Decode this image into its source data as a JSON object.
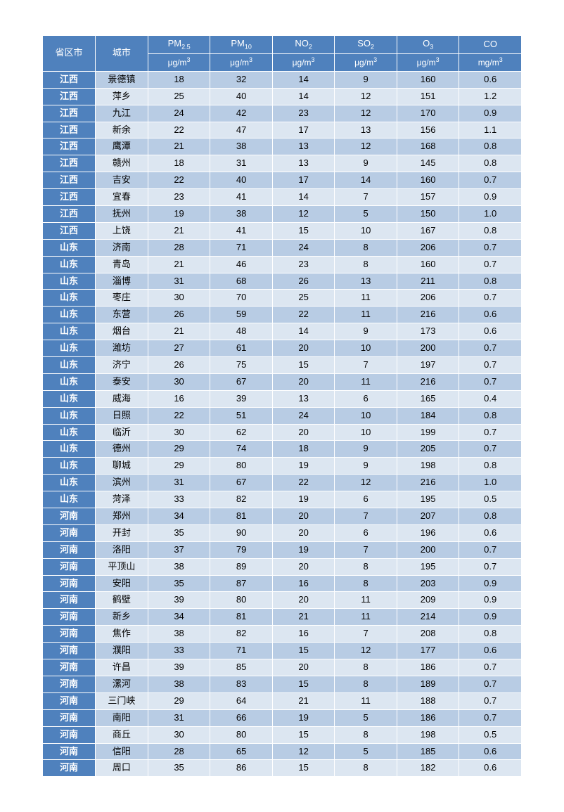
{
  "table": {
    "header": {
      "province": "省区市",
      "city": "城市",
      "pollutants": [
        {
          "name_html": "PM<sub>2.5</sub>",
          "unit_html": "μg/m<sup>3</sup>"
        },
        {
          "name_html": "PM<sub>10</sub>",
          "unit_html": "μg/m<sup>3</sup>"
        },
        {
          "name_html": "NO<sub>2</sub>",
          "unit_html": "μg/m<sup>3</sup>"
        },
        {
          "name_html": "SO<sub>2</sub>",
          "unit_html": "μg/m<sup>3</sup>"
        },
        {
          "name_html": "O<sub>3</sub>",
          "unit_html": "μg/m<sup>3</sup>"
        },
        {
          "name_html": "CO",
          "unit_html": "mg/m<sup>3</sup>"
        }
      ]
    },
    "colors": {
      "header_bg": "#4f81bd",
      "header_fg": "#ffffff",
      "province_bg": "#4f81bd",
      "province_fg": "#ffffff",
      "row_odd_bg": "#b8cce4",
      "row_even_bg": "#dce6f1",
      "cell_fg": "#000000",
      "border": "#ffffff"
    },
    "rows": [
      {
        "province": "江西",
        "city": "景德镇",
        "v": [
          "18",
          "32",
          "14",
          "9",
          "160",
          "0.6"
        ]
      },
      {
        "province": "江西",
        "city": "萍乡",
        "v": [
          "25",
          "40",
          "14",
          "12",
          "151",
          "1.2"
        ]
      },
      {
        "province": "江西",
        "city": "九江",
        "v": [
          "24",
          "42",
          "23",
          "12",
          "170",
          "0.9"
        ]
      },
      {
        "province": "江西",
        "city": "新余",
        "v": [
          "22",
          "47",
          "17",
          "13",
          "156",
          "1.1"
        ]
      },
      {
        "province": "江西",
        "city": "鹰潭",
        "v": [
          "21",
          "38",
          "13",
          "12",
          "168",
          "0.8"
        ]
      },
      {
        "province": "江西",
        "city": "赣州",
        "v": [
          "18",
          "31",
          "13",
          "9",
          "145",
          "0.8"
        ]
      },
      {
        "province": "江西",
        "city": "吉安",
        "v": [
          "22",
          "40",
          "17",
          "14",
          "160",
          "0.7"
        ]
      },
      {
        "province": "江西",
        "city": "宜春",
        "v": [
          "23",
          "41",
          "14",
          "7",
          "157",
          "0.9"
        ]
      },
      {
        "province": "江西",
        "city": "抚州",
        "v": [
          "19",
          "38",
          "12",
          "5",
          "150",
          "1.0"
        ]
      },
      {
        "province": "江西",
        "city": "上饶",
        "v": [
          "21",
          "41",
          "15",
          "10",
          "167",
          "0.8"
        ]
      },
      {
        "province": "山东",
        "city": "济南",
        "v": [
          "28",
          "71",
          "24",
          "8",
          "206",
          "0.7"
        ]
      },
      {
        "province": "山东",
        "city": "青岛",
        "v": [
          "21",
          "46",
          "23",
          "8",
          "160",
          "0.7"
        ]
      },
      {
        "province": "山东",
        "city": "淄博",
        "v": [
          "31",
          "68",
          "26",
          "13",
          "211",
          "0.8"
        ]
      },
      {
        "province": "山东",
        "city": "枣庄",
        "v": [
          "30",
          "70",
          "25",
          "11",
          "206",
          "0.7"
        ]
      },
      {
        "province": "山东",
        "city": "东营",
        "v": [
          "26",
          "59",
          "22",
          "11",
          "216",
          "0.6"
        ]
      },
      {
        "province": "山东",
        "city": "烟台",
        "v": [
          "21",
          "48",
          "14",
          "9",
          "173",
          "0.6"
        ]
      },
      {
        "province": "山东",
        "city": "潍坊",
        "v": [
          "27",
          "61",
          "20",
          "10",
          "200",
          "0.7"
        ]
      },
      {
        "province": "山东",
        "city": "济宁",
        "v": [
          "26",
          "75",
          "15",
          "7",
          "197",
          "0.7"
        ]
      },
      {
        "province": "山东",
        "city": "泰安",
        "v": [
          "30",
          "67",
          "20",
          "11",
          "216",
          "0.7"
        ]
      },
      {
        "province": "山东",
        "city": "威海",
        "v": [
          "16",
          "39",
          "13",
          "6",
          "165",
          "0.4"
        ]
      },
      {
        "province": "山东",
        "city": "日照",
        "v": [
          "22",
          "51",
          "24",
          "10",
          "184",
          "0.8"
        ]
      },
      {
        "province": "山东",
        "city": "临沂",
        "v": [
          "30",
          "62",
          "20",
          "10",
          "199",
          "0.7"
        ]
      },
      {
        "province": "山东",
        "city": "德州",
        "v": [
          "29",
          "74",
          "18",
          "9",
          "205",
          "0.7"
        ]
      },
      {
        "province": "山东",
        "city": "聊城",
        "v": [
          "29",
          "80",
          "19",
          "9",
          "198",
          "0.8"
        ]
      },
      {
        "province": "山东",
        "city": "滨州",
        "v": [
          "31",
          "67",
          "22",
          "12",
          "216",
          "1.0"
        ]
      },
      {
        "province": "山东",
        "city": "菏泽",
        "v": [
          "33",
          "82",
          "19",
          "6",
          "195",
          "0.5"
        ]
      },
      {
        "province": "河南",
        "city": "郑州",
        "v": [
          "34",
          "81",
          "20",
          "7",
          "207",
          "0.8"
        ]
      },
      {
        "province": "河南",
        "city": "开封",
        "v": [
          "35",
          "90",
          "20",
          "6",
          "196",
          "0.6"
        ]
      },
      {
        "province": "河南",
        "city": "洛阳",
        "v": [
          "37",
          "79",
          "19",
          "7",
          "200",
          "0.7"
        ]
      },
      {
        "province": "河南",
        "city": "平顶山",
        "v": [
          "38",
          "89",
          "20",
          "8",
          "195",
          "0.7"
        ]
      },
      {
        "province": "河南",
        "city": "安阳",
        "v": [
          "35",
          "87",
          "16",
          "8",
          "203",
          "0.9"
        ]
      },
      {
        "province": "河南",
        "city": "鹤壁",
        "v": [
          "39",
          "80",
          "20",
          "11",
          "209",
          "0.9"
        ]
      },
      {
        "province": "河南",
        "city": "新乡",
        "v": [
          "34",
          "81",
          "21",
          "11",
          "214",
          "0.9"
        ]
      },
      {
        "province": "河南",
        "city": "焦作",
        "v": [
          "38",
          "82",
          "16",
          "7",
          "208",
          "0.8"
        ]
      },
      {
        "province": "河南",
        "city": "濮阳",
        "v": [
          "33",
          "71",
          "15",
          "12",
          "177",
          "0.6"
        ]
      },
      {
        "province": "河南",
        "city": "许昌",
        "v": [
          "39",
          "85",
          "20",
          "8",
          "186",
          "0.7"
        ]
      },
      {
        "province": "河南",
        "city": "漯河",
        "v": [
          "38",
          "83",
          "15",
          "8",
          "189",
          "0.7"
        ]
      },
      {
        "province": "河南",
        "city": "三门峡",
        "v": [
          "29",
          "64",
          "21",
          "11",
          "188",
          "0.7"
        ]
      },
      {
        "province": "河南",
        "city": "南阳",
        "v": [
          "31",
          "66",
          "19",
          "5",
          "186",
          "0.7"
        ]
      },
      {
        "province": "河南",
        "city": "商丘",
        "v": [
          "30",
          "80",
          "15",
          "8",
          "198",
          "0.5"
        ]
      },
      {
        "province": "河南",
        "city": "信阳",
        "v": [
          "28",
          "65",
          "12",
          "5",
          "185",
          "0.6"
        ]
      },
      {
        "province": "河南",
        "city": "周口",
        "v": [
          "35",
          "86",
          "15",
          "8",
          "182",
          "0.6"
        ]
      }
    ]
  }
}
